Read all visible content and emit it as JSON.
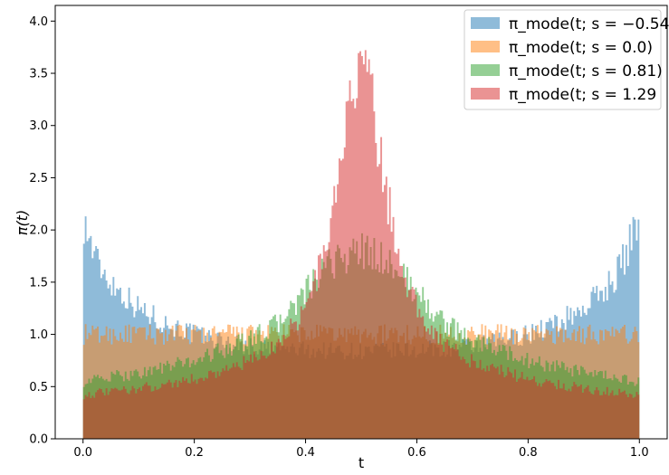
{
  "chart_data": {
    "type": "area",
    "xlabel": "t",
    "ylabel": "π(t)",
    "xlim": [
      -0.05,
      1.05
    ],
    "ylim": [
      0,
      4.15
    ],
    "xticks": [
      "0.0",
      "0.2",
      "0.4",
      "0.6",
      "0.8",
      "1.0"
    ],
    "yticks": [
      "0.0",
      "0.5",
      "1.0",
      "1.5",
      "2.0",
      "2.5",
      "3.0",
      "3.5",
      "4.0"
    ],
    "grid": false,
    "legend_position": "top-right",
    "series": [
      {
        "name": "π_mode(t; s = −0.54)",
        "color": "#1f77b4",
        "x": [
          0.0,
          0.025,
          0.05,
          0.1,
          0.15,
          0.2,
          0.3,
          0.4,
          0.5,
          0.6,
          0.7,
          0.8,
          0.85,
          0.9,
          0.95,
          0.975,
          1.0
        ],
        "y": [
          2.1,
          1.7,
          1.5,
          1.25,
          1.1,
          1.0,
          0.88,
          0.85,
          0.84,
          0.85,
          0.88,
          1.0,
          1.1,
          1.25,
          1.5,
          1.75,
          2.15
        ]
      },
      {
        "name": "π_mode(t; s = 0.0)",
        "color": "#ff7f0e",
        "x": [
          0.0,
          0.2,
          0.4,
          0.5,
          0.6,
          0.8,
          1.0
        ],
        "y": [
          1.0,
          1.0,
          1.0,
          1.0,
          1.0,
          1.0,
          1.0
        ]
      },
      {
        "name": "π_mode(t; s = 0.81)",
        "color": "#2ca02c",
        "x": [
          0.0,
          0.1,
          0.2,
          0.3,
          0.35,
          0.4,
          0.45,
          0.5,
          0.55,
          0.6,
          0.65,
          0.7,
          0.8,
          0.9,
          1.0
        ],
        "y": [
          0.55,
          0.63,
          0.75,
          0.95,
          1.1,
          1.4,
          1.7,
          1.8,
          1.7,
          1.4,
          1.1,
          0.95,
          0.75,
          0.63,
          0.55
        ]
      },
      {
        "name": "π_mode(t; s = 1.29",
        "color": "#d62728",
        "x": [
          0.0,
          0.1,
          0.2,
          0.3,
          0.35,
          0.4,
          0.43,
          0.46,
          0.48,
          0.5,
          0.52,
          0.54,
          0.57,
          0.6,
          0.65,
          0.7,
          0.8,
          0.9,
          1.0
        ],
        "y": [
          0.42,
          0.48,
          0.57,
          0.74,
          0.9,
          1.25,
          1.7,
          2.5,
          3.2,
          3.75,
          3.2,
          2.5,
          1.7,
          1.25,
          0.9,
          0.74,
          0.57,
          0.48,
          0.42
        ]
      }
    ]
  }
}
